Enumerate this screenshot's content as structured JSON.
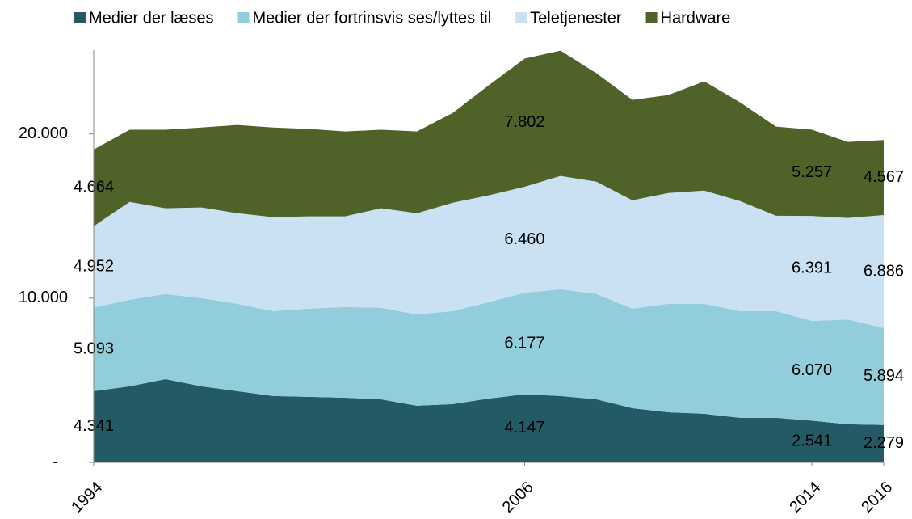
{
  "chart_data": {
    "type": "stacked_area",
    "x": [
      1994,
      1995,
      1996,
      1997,
      1998,
      1999,
      2000,
      2001,
      2002,
      2003,
      2004,
      2005,
      2006,
      2007,
      2008,
      2009,
      2010,
      2011,
      2012,
      2013,
      2014,
      2015,
      2016
    ],
    "xlim": [
      1994,
      2016
    ],
    "xticks": [
      1994,
      2006,
      2014,
      2016
    ],
    "ylim": [
      0,
      25100
    ],
    "yticks": [
      {
        "value": 0,
        "label": "-"
      },
      {
        "value": 10000,
        "label": "10.000"
      },
      {
        "value": 20000,
        "label": "20.000"
      }
    ],
    "grid": false,
    "legend": "top",
    "series": [
      {
        "name": "Medier der læses",
        "color": "#235a66",
        "values": [
          4341,
          4630,
          5070,
          4630,
          4340,
          4040,
          3990,
          3940,
          3840,
          3450,
          3550,
          3890,
          4147,
          4040,
          3840,
          3300,
          3050,
          2960,
          2710,
          2710,
          2541,
          2320,
          2279
        ],
        "value_labels": [
          "4.341",
          null,
          null,
          null,
          null,
          null,
          null,
          null,
          null,
          null,
          null,
          null,
          "4.147",
          null,
          null,
          null,
          null,
          null,
          null,
          null,
          "2.541",
          null,
          "2.279"
        ]
      },
      {
        "name": "Medier der fortrinsvis ses/lyttes til",
        "color": "#92cddb",
        "values": [
          5093,
          5270,
          5180,
          5370,
          5310,
          5170,
          5370,
          5520,
          5570,
          5560,
          5660,
          5860,
          6177,
          6500,
          6410,
          6060,
          6600,
          6690,
          6500,
          6500,
          6070,
          6380,
          5894
        ],
        "value_labels": [
          "5.093",
          null,
          null,
          null,
          null,
          null,
          null,
          null,
          null,
          null,
          null,
          null,
          "6.177",
          null,
          null,
          null,
          null,
          null,
          null,
          null,
          "6.070",
          null,
          "5.894"
        ]
      },
      {
        "name": "Teletjenester",
        "color": "#c9e1f2",
        "values": [
          4952,
          5960,
          5220,
          5520,
          5520,
          5720,
          5620,
          5520,
          6060,
          6160,
          6600,
          6510,
          6460,
          6900,
          6840,
          6600,
          6750,
          6900,
          6700,
          5810,
          6391,
          6180,
          6886
        ],
        "value_labels": [
          "4.952",
          null,
          null,
          null,
          null,
          null,
          null,
          null,
          null,
          null,
          null,
          null,
          "6.460",
          null,
          null,
          null,
          null,
          null,
          null,
          null,
          "6.391",
          null,
          "6.886"
        ]
      },
      {
        "name": "Hardware",
        "color": "#4f6228",
        "values": [
          4664,
          4390,
          4780,
          4870,
          5370,
          5460,
          5320,
          5170,
          4780,
          4980,
          5470,
          6700,
          7802,
          7630,
          6600,
          6110,
          5960,
          6650,
          6010,
          5420,
          5257,
          4630,
          4567
        ],
        "value_labels": [
          "4.664",
          null,
          null,
          null,
          null,
          null,
          null,
          null,
          null,
          null,
          null,
          null,
          "7.802",
          null,
          null,
          null,
          null,
          null,
          null,
          null,
          "5.257",
          null,
          "4.567"
        ]
      }
    ]
  }
}
